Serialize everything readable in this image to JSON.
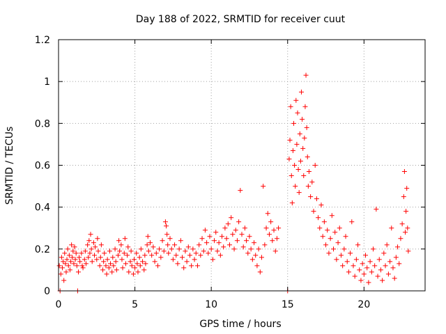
{
  "chart_data": {
    "type": "scatter",
    "title": "Day 188 of 2022, SRMTID for receiver cuut",
    "xlabel": "GPS time / hours",
    "ylabel": "SRMTID / TECUs",
    "xlim": [
      0,
      24
    ],
    "ylim": [
      0,
      1.2
    ],
    "x_ticks": [
      0,
      5,
      10,
      15,
      20
    ],
    "x_tick_labels": [
      "0",
      "5",
      "10",
      "15",
      "20"
    ],
    "y_ticks": [
      0,
      0.2,
      0.4,
      0.6,
      0.8,
      1.0,
      1.2
    ],
    "y_tick_labels": [
      "0",
      "0.2",
      "0.4",
      "0.6",
      "0.8",
      "1",
      "1.2"
    ],
    "grid": true,
    "marker": "+",
    "series": [
      {
        "name": "SRMTID",
        "color": "#ff0000",
        "points": [
          [
            0.05,
            0.12
          ],
          [
            0.1,
            0.0
          ],
          [
            0.15,
            0.08
          ],
          [
            0.2,
            0.16
          ],
          [
            0.25,
            0.11
          ],
          [
            0.3,
            0.14
          ],
          [
            0.35,
            0.05
          ],
          [
            0.4,
            0.18
          ],
          [
            0.45,
            0.13
          ],
          [
            0.5,
            0.09
          ],
          [
            0.55,
            0.15
          ],
          [
            0.6,
            0.2
          ],
          [
            0.65,
            0.12
          ],
          [
            0.7,
            0.17
          ],
          [
            0.75,
            0.1
          ],
          [
            0.8,
            0.14
          ],
          [
            0.85,
            0.22
          ],
          [
            0.9,
            0.16
          ],
          [
            0.95,
            0.19
          ],
          [
            1.0,
            0.13
          ],
          [
            1.05,
            0.21
          ],
          [
            1.1,
            0.15
          ],
          [
            1.15,
            0.18
          ],
          [
            1.2,
            0.12
          ],
          [
            1.25,
            0.0
          ],
          [
            1.3,
            0.09
          ],
          [
            1.35,
            0.16
          ],
          [
            1.4,
            0.14
          ],
          [
            1.5,
            0.18
          ],
          [
            1.55,
            0.12
          ],
          [
            1.6,
            0.11
          ],
          [
            1.7,
            0.15
          ],
          [
            1.75,
            0.19
          ],
          [
            1.8,
            0.13
          ],
          [
            1.9,
            0.22
          ],
          [
            1.95,
            0.16
          ],
          [
            2.0,
            0.24
          ],
          [
            2.05,
            0.18
          ],
          [
            2.1,
            0.27
          ],
          [
            2.15,
            0.2
          ],
          [
            2.2,
            0.14
          ],
          [
            2.3,
            0.23
          ],
          [
            2.35,
            0.17
          ],
          [
            2.4,
            0.21
          ],
          [
            2.5,
            0.15
          ],
          [
            2.55,
            0.25
          ],
          [
            2.6,
            0.19
          ],
          [
            2.7,
            0.12
          ],
          [
            2.75,
            0.16
          ],
          [
            2.8,
            0.22
          ],
          [
            2.9,
            0.1
          ],
          [
            2.95,
            0.14
          ],
          [
            3.0,
            0.18
          ],
          [
            3.1,
            0.12
          ],
          [
            3.15,
            0.08
          ],
          [
            3.2,
            0.15
          ],
          [
            3.3,
            0.11
          ],
          [
            3.35,
            0.19
          ],
          [
            3.4,
            0.13
          ],
          [
            3.5,
            0.09
          ],
          [
            3.55,
            0.16
          ],
          [
            3.6,
            0.12
          ],
          [
            3.7,
            0.2
          ],
          [
            3.75,
            0.14
          ],
          [
            3.8,
            0.1
          ],
          [
            3.9,
            0.17
          ],
          [
            3.95,
            0.24
          ],
          [
            4.0,
            0.19
          ],
          [
            4.1,
            0.22
          ],
          [
            4.15,
            0.15
          ],
          [
            4.2,
            0.11
          ],
          [
            4.3,
            0.18
          ],
          [
            4.35,
            0.25
          ],
          [
            4.4,
            0.13
          ],
          [
            4.5,
            0.17
          ],
          [
            4.55,
            0.21
          ],
          [
            4.6,
            0.09
          ],
          [
            4.7,
            0.14
          ],
          [
            4.75,
            0.19
          ],
          [
            4.8,
            0.12
          ],
          [
            4.9,
            0.08
          ],
          [
            4.95,
            0.15
          ],
          [
            5.0,
            0.11
          ],
          [
            5.1,
            0.18
          ],
          [
            5.15,
            0.13
          ],
          [
            5.2,
            0.09
          ],
          [
            5.3,
            0.16
          ],
          [
            5.35,
            0.12
          ],
          [
            5.4,
            0.2
          ],
          [
            5.5,
            0.14
          ],
          [
            5.6,
            0.1
          ],
          [
            5.65,
            0.17
          ],
          [
            5.7,
            0.13
          ],
          [
            5.8,
            0.22
          ],
          [
            5.85,
            0.26
          ],
          [
            5.9,
            0.19
          ],
          [
            6.0,
            0.23
          ],
          [
            6.1,
            0.17
          ],
          [
            6.2,
            0.21
          ],
          [
            6.3,
            0.14
          ],
          [
            6.4,
            0.18
          ],
          [
            6.5,
            0.12
          ],
          [
            6.6,
            0.2
          ],
          [
            6.7,
            0.16
          ],
          [
            6.8,
            0.24
          ],
          [
            6.9,
            0.19
          ],
          [
            7.0,
            0.33
          ],
          [
            7.05,
            0.31
          ],
          [
            7.1,
            0.27
          ],
          [
            7.15,
            0.22
          ],
          [
            7.2,
            0.18
          ],
          [
            7.3,
            0.25
          ],
          [
            7.4,
            0.2
          ],
          [
            7.5,
            0.15
          ],
          [
            7.6,
            0.22
          ],
          [
            7.7,
            0.17
          ],
          [
            7.8,
            0.13
          ],
          [
            7.9,
            0.2
          ],
          [
            8.0,
            0.24
          ],
          [
            8.1,
            0.16
          ],
          [
            8.2,
            0.11
          ],
          [
            8.3,
            0.19
          ],
          [
            8.4,
            0.14
          ],
          [
            8.5,
            0.21
          ],
          [
            8.6,
            0.17
          ],
          [
            8.7,
            0.12
          ],
          [
            8.8,
            0.2
          ],
          [
            8.9,
            0.15
          ],
          [
            9.0,
            0.18
          ],
          [
            9.1,
            0.12
          ],
          [
            9.2,
            0.22
          ],
          [
            9.3,
            0.17
          ],
          [
            9.4,
            0.25
          ],
          [
            9.5,
            0.19
          ],
          [
            9.6,
            0.29
          ],
          [
            9.7,
            0.23
          ],
          [
            9.8,
            0.18
          ],
          [
            9.9,
            0.26
          ],
          [
            10.0,
            0.2
          ],
          [
            10.1,
            0.15
          ],
          [
            10.2,
            0.24
          ],
          [
            10.3,
            0.28
          ],
          [
            10.4,
            0.19
          ],
          [
            10.5,
            0.23
          ],
          [
            10.6,
            0.17
          ],
          [
            10.7,
            0.26
          ],
          [
            10.8,
            0.21
          ],
          [
            10.9,
            0.3
          ],
          [
            11.0,
            0.25
          ],
          [
            11.1,
            0.32
          ],
          [
            11.2,
            0.22
          ],
          [
            11.3,
            0.35
          ],
          [
            11.4,
            0.27
          ],
          [
            11.5,
            0.2
          ],
          [
            11.6,
            0.29
          ],
          [
            11.7,
            0.24
          ],
          [
            11.8,
            0.33
          ],
          [
            11.9,
            0.48
          ],
          [
            12.0,
            0.27
          ],
          [
            12.1,
            0.21
          ],
          [
            12.2,
            0.3
          ],
          [
            12.3,
            0.24
          ],
          [
            12.4,
            0.18
          ],
          [
            12.5,
            0.26
          ],
          [
            12.6,
            0.2
          ],
          [
            12.7,
            0.15
          ],
          [
            12.8,
            0.23
          ],
          [
            12.9,
            0.17
          ],
          [
            13.0,
            0.12
          ],
          [
            13.1,
            0.2
          ],
          [
            13.2,
            0.09
          ],
          [
            13.3,
            0.16
          ],
          [
            13.4,
            0.5
          ],
          [
            13.5,
            0.22
          ],
          [
            13.6,
            0.3
          ],
          [
            13.7,
            0.37
          ],
          [
            13.8,
            0.27
          ],
          [
            13.9,
            0.33
          ],
          [
            14.0,
            0.24
          ],
          [
            14.1,
            0.29
          ],
          [
            14.2,
            0.19
          ],
          [
            14.3,
            0.25
          ],
          [
            14.4,
            0.3
          ],
          [
            15.0,
            0.0
          ],
          [
            15.1,
            0.63
          ],
          [
            15.15,
            0.72
          ],
          [
            15.2,
            0.88
          ],
          [
            15.25,
            0.55
          ],
          [
            15.3,
            0.42
          ],
          [
            15.35,
            0.67
          ],
          [
            15.4,
            0.8
          ],
          [
            15.45,
            0.6
          ],
          [
            15.5,
            0.5
          ],
          [
            15.55,
            0.91
          ],
          [
            15.6,
            0.7
          ],
          [
            15.65,
            0.85
          ],
          [
            15.7,
            0.58
          ],
          [
            15.75,
            0.47
          ],
          [
            15.8,
            0.75
          ],
          [
            15.85,
            0.62
          ],
          [
            15.9,
            0.95
          ],
          [
            15.95,
            0.82
          ],
          [
            16.0,
            0.68
          ],
          [
            16.05,
            0.55
          ],
          [
            16.1,
            0.73
          ],
          [
            16.15,
            0.88
          ],
          [
            16.2,
            1.03
          ],
          [
            16.25,
            0.78
          ],
          [
            16.3,
            0.64
          ],
          [
            16.35,
            0.5
          ],
          [
            16.4,
            0.57
          ],
          [
            16.5,
            0.45
          ],
          [
            16.6,
            0.52
          ],
          [
            16.7,
            0.38
          ],
          [
            16.8,
            0.6
          ],
          [
            16.9,
            0.44
          ],
          [
            17.0,
            0.35
          ],
          [
            17.1,
            0.3
          ],
          [
            17.2,
            0.41
          ],
          [
            17.3,
            0.26
          ],
          [
            17.4,
            0.33
          ],
          [
            17.5,
            0.22
          ],
          [
            17.6,
            0.29
          ],
          [
            17.7,
            0.18
          ],
          [
            17.8,
            0.25
          ],
          [
            17.9,
            0.36
          ],
          [
            18.0,
            0.2
          ],
          [
            18.1,
            0.28
          ],
          [
            18.2,
            0.15
          ],
          [
            18.3,
            0.23
          ],
          [
            18.4,
            0.3
          ],
          [
            18.5,
            0.17
          ],
          [
            18.6,
            0.12
          ],
          [
            18.7,
            0.2
          ],
          [
            18.8,
            0.26
          ],
          [
            18.9,
            0.14
          ],
          [
            19.0,
            0.09
          ],
          [
            19.1,
            0.18
          ],
          [
            19.2,
            0.33
          ],
          [
            19.3,
            0.12
          ],
          [
            19.4,
            0.07
          ],
          [
            19.5,
            0.15
          ],
          [
            19.6,
            0.22
          ],
          [
            19.7,
            0.1
          ],
          [
            19.8,
            0.05
          ],
          [
            19.9,
            0.13
          ],
          [
            20.0,
            0.08
          ],
          [
            20.1,
            0.17
          ],
          [
            20.2,
            0.11
          ],
          [
            20.3,
            0.04
          ],
          [
            20.4,
            0.14
          ],
          [
            20.5,
            0.09
          ],
          [
            20.6,
            0.2
          ],
          [
            20.7,
            0.12
          ],
          [
            20.8,
            0.39
          ],
          [
            20.9,
            0.07
          ],
          [
            21.0,
            0.15
          ],
          [
            21.1,
            0.1
          ],
          [
            21.2,
            0.05
          ],
          [
            21.3,
            0.18
          ],
          [
            21.4,
            0.12
          ],
          [
            21.5,
            0.22
          ],
          [
            21.6,
            0.08
          ],
          [
            21.7,
            0.14
          ],
          [
            21.8,
            0.3
          ],
          [
            21.9,
            0.11
          ],
          [
            22.0,
            0.06
          ],
          [
            22.1,
            0.16
          ],
          [
            22.2,
            0.21
          ],
          [
            22.3,
            0.13
          ],
          [
            22.4,
            0.25
          ],
          [
            22.5,
            0.32
          ],
          [
            22.6,
            0.45
          ],
          [
            22.65,
            0.57
          ],
          [
            22.7,
            0.28
          ],
          [
            22.75,
            0.38
          ],
          [
            22.8,
            0.49
          ],
          [
            22.85,
            0.3
          ],
          [
            22.9,
            0.19
          ]
        ]
      }
    ]
  }
}
